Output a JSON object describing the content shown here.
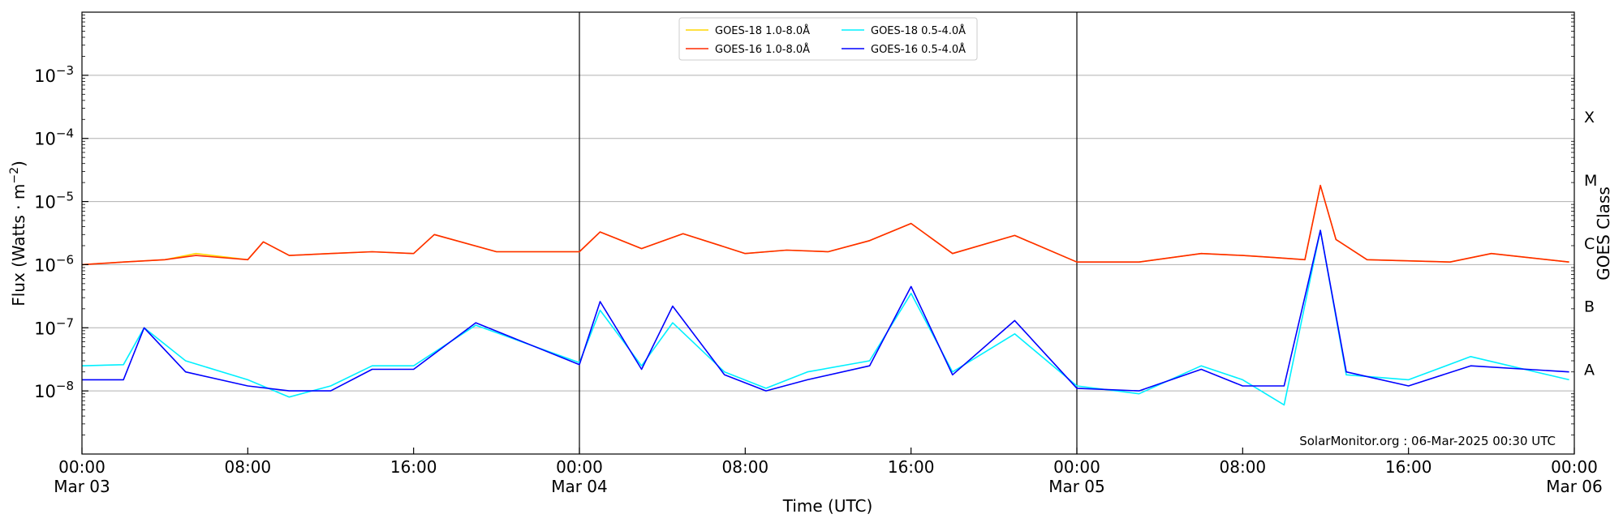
{
  "chart_data": {
    "type": "line",
    "title": "",
    "xlabel": "Time (UTC)",
    "ylabel": "Flux (Watts · m",
    "ylabel_sup": "−2",
    "ylabel_close": ")",
    "right_axis_label": "GOES Class",
    "y_scale": "log",
    "ylim": [
      1e-09,
      0.01
    ],
    "y_ticks": [
      {
        "value": 1e-08,
        "base": "10",
        "exp": "−8"
      },
      {
        "value": 1e-07,
        "base": "10",
        "exp": "−7"
      },
      {
        "value": 1e-06,
        "base": "10",
        "exp": "−6"
      },
      {
        "value": 1e-05,
        "base": "10",
        "exp": "−5"
      },
      {
        "value": 0.0001,
        "base": "10",
        "exp": "−4"
      },
      {
        "value": 0.001,
        "base": "10",
        "exp": "−3"
      }
    ],
    "goes_classes": [
      {
        "label": "A",
        "value": 2.2e-08
      },
      {
        "label": "B",
        "value": 2.2e-07
      },
      {
        "label": "C",
        "value": 2.2e-06
      },
      {
        "label": "M",
        "value": 2.2e-05
      },
      {
        "label": "X",
        "value": 0.00022
      }
    ],
    "xlim": [
      "2025-03-03 00:00",
      "2025-03-06 00:00"
    ],
    "x_ticks": [
      {
        "time": "2025-03-03 00:00",
        "line1": "00:00",
        "line2": "Mar 03"
      },
      {
        "time": "2025-03-03 08:00",
        "line1": "08:00",
        "line2": ""
      },
      {
        "time": "2025-03-03 16:00",
        "line1": "16:00",
        "line2": ""
      },
      {
        "time": "2025-03-04 00:00",
        "line1": "00:00",
        "line2": "Mar 04"
      },
      {
        "time": "2025-03-04 08:00",
        "line1": "08:00",
        "line2": ""
      },
      {
        "time": "2025-03-04 16:00",
        "line1": "16:00",
        "line2": ""
      },
      {
        "time": "2025-03-05 00:00",
        "line1": "00:00",
        "line2": "Mar 05"
      },
      {
        "time": "2025-03-05 08:00",
        "line1": "08:00",
        "line2": ""
      },
      {
        "time": "2025-03-05 16:00",
        "line1": "16:00",
        "line2": ""
      },
      {
        "time": "2025-03-06 00:00",
        "line1": "00:00",
        "line2": "Mar 06"
      }
    ],
    "day_boundaries": [
      "2025-03-04 00:00",
      "2025-03-05 00:00"
    ],
    "grid": "horizontal",
    "legend_position": "top-center",
    "series": [
      {
        "name": "GOES-18 1.0-8.0Å",
        "color": "#FFD700",
        "x": [
          "2025-03-03 00:00",
          "2025-03-03 02:00",
          "2025-03-03 04:00",
          "2025-03-03 05:30",
          "2025-03-03 08:00",
          "2025-03-03 08:45",
          "2025-03-03 10:00",
          "2025-03-03 12:00",
          "2025-03-03 14:00",
          "2025-03-03 16:00",
          "2025-03-03 17:00",
          "2025-03-03 20:00",
          "2025-03-04 00:00",
          "2025-03-04 01:00",
          "2025-03-04 03:00",
          "2025-03-04 05:00",
          "2025-03-04 08:00",
          "2025-03-04 10:00",
          "2025-03-04 12:00",
          "2025-03-04 14:00",
          "2025-03-04 16:00",
          "2025-03-04 18:00",
          "2025-03-04 21:00",
          "2025-03-05 00:00",
          "2025-03-05 03:00",
          "2025-03-05 06:00",
          "2025-03-05 08:00",
          "2025-03-05 09:30",
          "2025-03-05 11:00",
          "2025-03-05 11:45",
          "2025-03-05 12:30",
          "2025-03-05 14:00",
          "2025-03-05 18:00",
          "2025-03-05 20:00",
          "2025-03-05 23:45"
        ],
        "values": [
          1e-06,
          1.1e-06,
          1.2e-06,
          1.5e-06,
          1.2e-06,
          2.3e-06,
          1.4e-06,
          1.5e-06,
          1.6e-06,
          1.5e-06,
          3e-06,
          1.6e-06,
          1.6e-06,
          3.3e-06,
          1.8e-06,
          3.1e-06,
          1.5e-06,
          1.7e-06,
          1.6e-06,
          2.4e-06,
          4.5e-06,
          1.5e-06,
          2.9e-06,
          1.1e-06,
          1.1e-06,
          1.5e-06,
          1.4e-06,
          1.3e-06,
          1.2e-06,
          1.8e-05,
          2.5e-06,
          1.2e-06,
          1.1e-06,
          1.5e-06,
          1.1e-06
        ]
      },
      {
        "name": "GOES-16 1.0-8.0Å",
        "color": "#FF2A00",
        "x": [
          "2025-03-03 00:00",
          "2025-03-03 02:00",
          "2025-03-03 04:00",
          "2025-03-03 05:30",
          "2025-03-03 08:00",
          "2025-03-03 08:45",
          "2025-03-03 10:00",
          "2025-03-03 12:00",
          "2025-03-03 14:00",
          "2025-03-03 16:00",
          "2025-03-03 17:00",
          "2025-03-03 20:00",
          "2025-03-04 00:00",
          "2025-03-04 01:00",
          "2025-03-04 03:00",
          "2025-03-04 05:00",
          "2025-03-04 08:00",
          "2025-03-04 10:00",
          "2025-03-04 12:00",
          "2025-03-04 14:00",
          "2025-03-04 16:00",
          "2025-03-04 18:00",
          "2025-03-04 21:00",
          "2025-03-05 00:00",
          "2025-03-05 03:00",
          "2025-03-05 06:00",
          "2025-03-05 08:00",
          "2025-03-05 09:30",
          "2025-03-05 11:00",
          "2025-03-05 11:45",
          "2025-03-05 12:30",
          "2025-03-05 14:00",
          "2025-03-05 18:00",
          "2025-03-05 20:00",
          "2025-03-05 23:45"
        ],
        "values": [
          1e-06,
          1.1e-06,
          1.2e-06,
          1.4e-06,
          1.2e-06,
          2.3e-06,
          1.4e-06,
          1.5e-06,
          1.6e-06,
          1.5e-06,
          3e-06,
          1.6e-06,
          1.6e-06,
          3.3e-06,
          1.8e-06,
          3.1e-06,
          1.5e-06,
          1.7e-06,
          1.6e-06,
          2.4e-06,
          4.5e-06,
          1.5e-06,
          2.9e-06,
          1.1e-06,
          1.1e-06,
          1.5e-06,
          1.4e-06,
          1.3e-06,
          1.2e-06,
          1.8e-05,
          2.5e-06,
          1.2e-06,
          1.1e-06,
          1.5e-06,
          1.1e-06
        ]
      },
      {
        "name": "GOES-18 0.5-4.0Å",
        "color": "#00F0FF",
        "x": [
          "2025-03-03 00:00",
          "2025-03-03 02:00",
          "2025-03-03 03:00",
          "2025-03-03 05:00",
          "2025-03-03 08:00",
          "2025-03-03 10:00",
          "2025-03-03 12:00",
          "2025-03-03 14:00",
          "2025-03-03 16:00",
          "2025-03-03 19:00",
          "2025-03-04 00:00",
          "2025-03-04 01:00",
          "2025-03-04 03:00",
          "2025-03-04 04:30",
          "2025-03-04 07:00",
          "2025-03-04 09:00",
          "2025-03-04 11:00",
          "2025-03-04 14:00",
          "2025-03-04 16:00",
          "2025-03-04 18:00",
          "2025-03-04 21:00",
          "2025-03-05 00:00",
          "2025-03-05 03:00",
          "2025-03-05 06:00",
          "2025-03-05 08:00",
          "2025-03-05 10:00",
          "2025-03-05 11:45",
          "2025-03-05 13:00",
          "2025-03-05 16:00",
          "2025-03-05 19:00",
          "2025-03-05 23:45"
        ],
        "values": [
          2.5e-08,
          2.6e-08,
          1e-07,
          3e-08,
          1.5e-08,
          8e-09,
          1.2e-08,
          2.5e-08,
          2.5e-08,
          1.1e-07,
          2.8e-08,
          1.9e-07,
          2.5e-08,
          1.2e-07,
          2e-08,
          1.1e-08,
          2e-08,
          3e-08,
          3.5e-07,
          2e-08,
          8e-08,
          1.2e-08,
          9e-09,
          2.5e-08,
          1.5e-08,
          6e-09,
          3.5e-06,
          1.8e-08,
          1.5e-08,
          3.5e-08,
          1.5e-08
        ]
      },
      {
        "name": "GOES-16 0.5-4.0Å",
        "color": "#0000FF",
        "x": [
          "2025-03-03 00:00",
          "2025-03-03 02:00",
          "2025-03-03 03:00",
          "2025-03-03 05:00",
          "2025-03-03 08:00",
          "2025-03-03 10:00",
          "2025-03-03 12:00",
          "2025-03-03 14:00",
          "2025-03-03 16:00",
          "2025-03-03 19:00",
          "2025-03-04 00:00",
          "2025-03-04 01:00",
          "2025-03-04 03:00",
          "2025-03-04 04:30",
          "2025-03-04 07:00",
          "2025-03-04 09:00",
          "2025-03-04 11:00",
          "2025-03-04 14:00",
          "2025-03-04 16:00",
          "2025-03-04 18:00",
          "2025-03-04 21:00",
          "2025-03-05 00:00",
          "2025-03-05 03:00",
          "2025-03-05 06:00",
          "2025-03-05 08:00",
          "2025-03-05 10:00",
          "2025-03-05 11:45",
          "2025-03-05 13:00",
          "2025-03-05 16:00",
          "2025-03-05 19:00",
          "2025-03-05 23:45"
        ],
        "values": [
          1.5e-08,
          1.5e-08,
          1e-07,
          2e-08,
          1.2e-08,
          1e-08,
          1e-08,
          2.2e-08,
          2.2e-08,
          1.2e-07,
          2.6e-08,
          2.6e-07,
          2.2e-08,
          2.2e-07,
          1.8e-08,
          1e-08,
          1.5e-08,
          2.5e-08,
          4.5e-07,
          1.8e-08,
          1.3e-07,
          1.1e-08,
          1e-08,
          2.2e-08,
          1.2e-08,
          1.2e-08,
          3.5e-06,
          2e-08,
          1.2e-08,
          2.5e-08,
          2e-08
        ]
      }
    ],
    "annotation": "SolarMonitor.org : 06-Mar-2025 00:30 UTC"
  }
}
